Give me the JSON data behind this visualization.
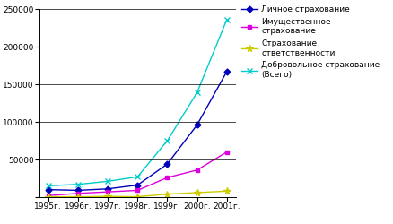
{
  "years": [
    "1995г.",
    "1996г.",
    "1997г.",
    "1998г.",
    "1999г.",
    "2000г.",
    "2001г."
  ],
  "personal": [
    10000,
    9000,
    11000,
    16000,
    44000,
    96000,
    167000
  ],
  "property": [
    2000,
    5000,
    7000,
    9000,
    26000,
    36000,
    60000
  ],
  "liability": [
    500,
    500,
    1000,
    500,
    4000,
    6000,
    8000
  ],
  "voluntary_total": [
    15000,
    17000,
    21000,
    27000,
    75000,
    139000,
    236000
  ],
  "colors": {
    "personal": "#0000bb",
    "property": "#dd00dd",
    "liability": "#cccc00",
    "voluntary_total": "#00cccc"
  },
  "markers": {
    "personal": "D",
    "property": "s",
    "liability": "*",
    "voluntary_total": "x"
  },
  "ylim": [
    0,
    250000
  ],
  "yticks": [
    0,
    50000,
    100000,
    150000,
    200000,
    250000
  ],
  "legend_labels": [
    "Личное страхование",
    "Имущественное\nстрахование",
    "Страхование\nответственности",
    "Добровольное страхование\n(Всего)"
  ],
  "bg_color": "#ffffff",
  "font_size": 6.5,
  "legend_font_size": 6.5
}
